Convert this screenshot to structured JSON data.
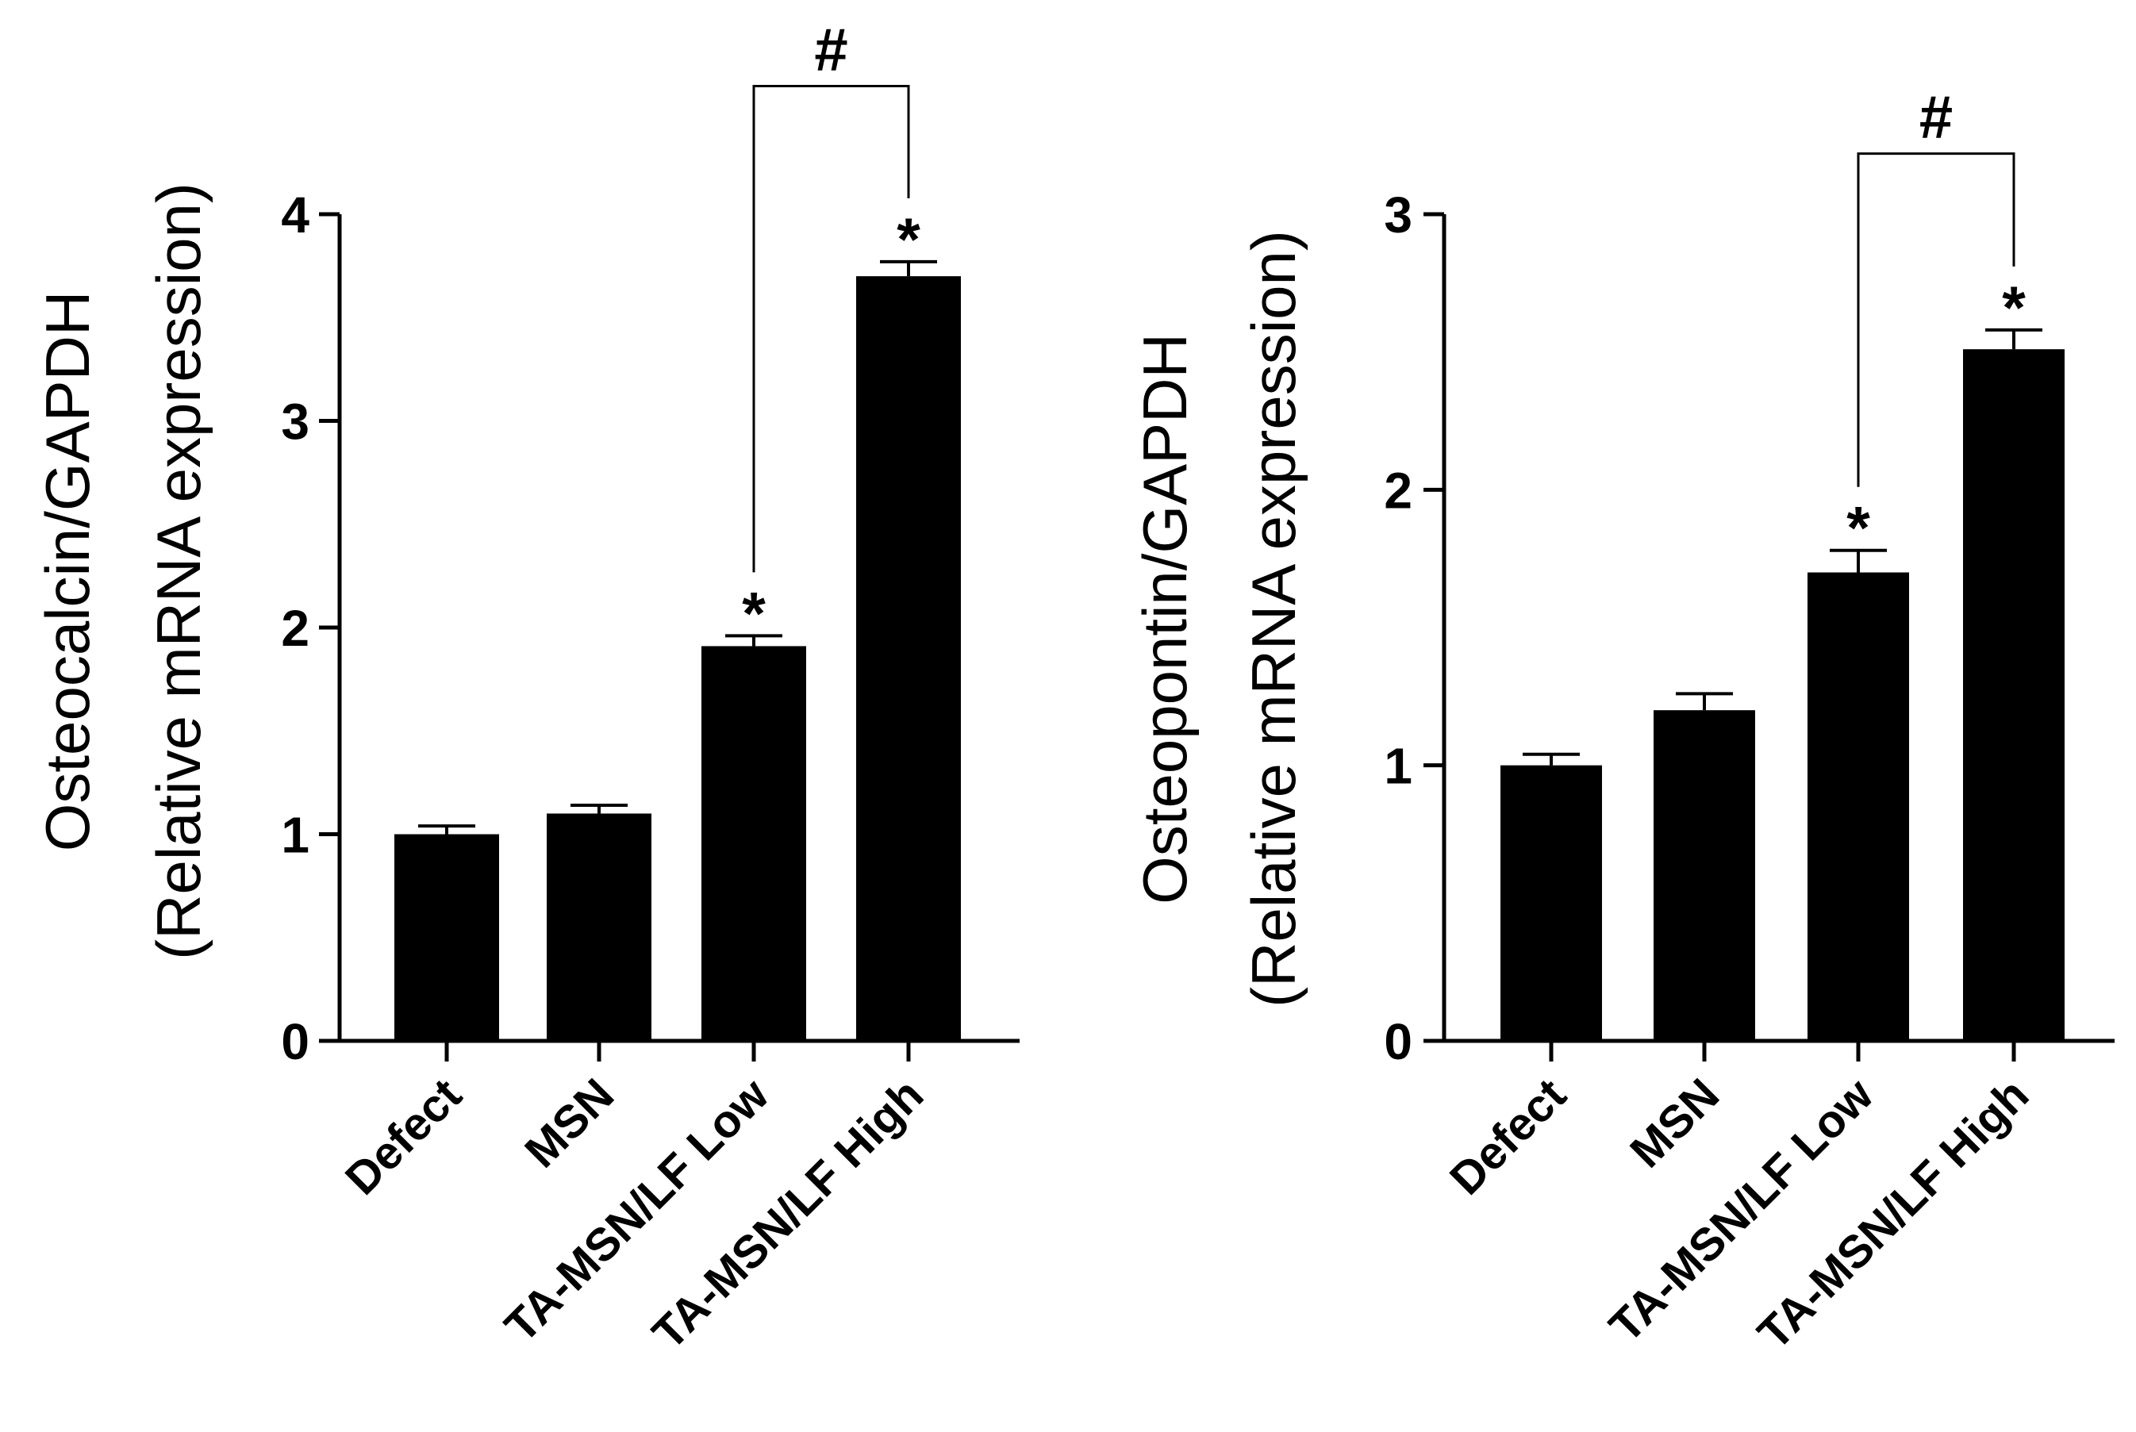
{
  "chart_data": [
    {
      "type": "bar",
      "ylabel_line1": "Osteocalcin/GAPDH",
      "ylabel_line2": "(Relative mRNA expression)",
      "categories": [
        "Defect",
        "MSN",
        "TA-MSN/LF Low",
        "TA-MSN/LF High"
      ],
      "values": [
        1.0,
        1.1,
        1.91,
        3.7
      ],
      "errors": [
        0.04,
        0.04,
        0.05,
        0.07
      ],
      "significance": [
        "",
        "",
        "*",
        "*"
      ],
      "ylim": [
        0,
        4
      ],
      "yticks": [
        "0",
        "1",
        "2",
        "3",
        "4"
      ],
      "bracket": {
        "from": 2,
        "to": 3,
        "label": "#",
        "y_data": 4.62
      },
      "bar_color": "#000000"
    },
    {
      "type": "bar",
      "ylabel_line1": "Osteopontin/GAPDH",
      "ylabel_line2": "(Relative mRNA expression)",
      "categories": [
        "Defect",
        "MSN",
        "TA-MSN/LF Low",
        "TA-MSN/LF High"
      ],
      "values": [
        1.0,
        1.2,
        1.7,
        2.51
      ],
      "errors": [
        0.04,
        0.06,
        0.08,
        0.07
      ],
      "significance": [
        "",
        "",
        "*",
        "*"
      ],
      "ylim": [
        0,
        3
      ],
      "yticks": [
        "0",
        "1",
        "2",
        "3"
      ],
      "bracket": {
        "from": 2,
        "to": 3,
        "label": "#",
        "y_data": 3.22
      },
      "bar_color": "#000000"
    }
  ]
}
